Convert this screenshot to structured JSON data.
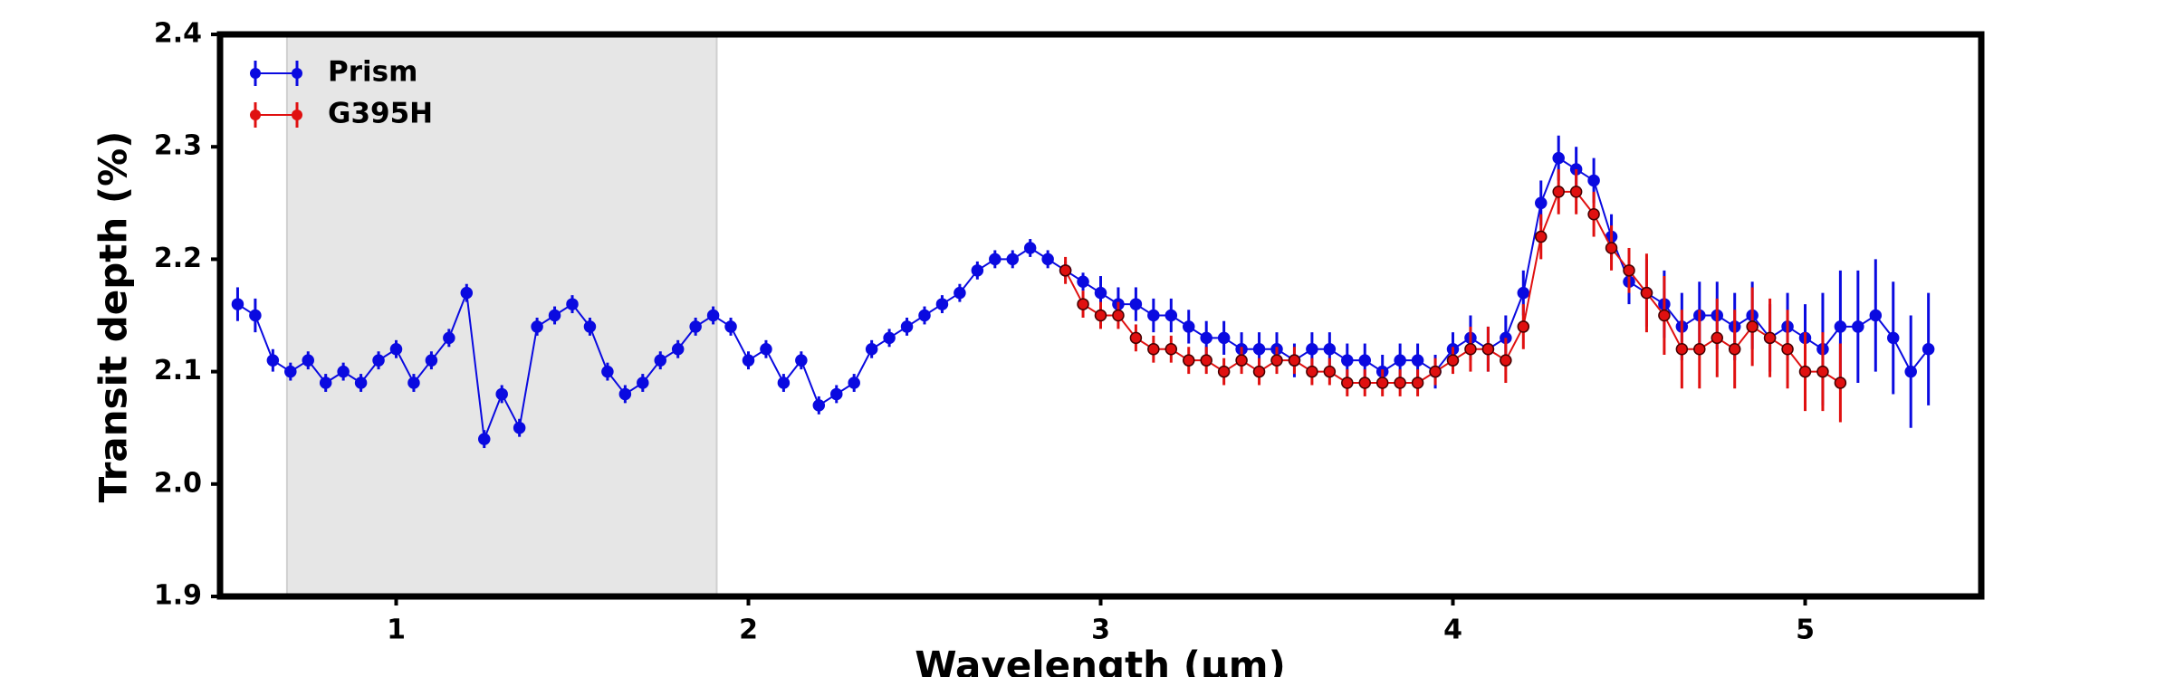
{
  "chart_data": {
    "type": "errorbar",
    "xlabel": "Wavelength (µm)",
    "ylabel": "Transit depth (%)",
    "xlim": [
      0.5,
      5.5
    ],
    "ylim": [
      1.9,
      2.4
    ],
    "xticks": [
      1,
      2,
      3,
      4,
      5
    ],
    "yticks": [
      {
        "value": 1.9,
        "label": "1.9"
      },
      {
        "value": 2.0,
        "label": "2.0"
      },
      {
        "value": 2.1,
        "label": "2.1"
      },
      {
        "value": 2.2,
        "label": "2.2"
      },
      {
        "value": 2.3,
        "label": "2.3"
      },
      {
        "value": 2.4,
        "label": "2.4"
      }
    ],
    "shade": [
      0.69,
      1.91
    ],
    "legend": "upper left",
    "series": [
      {
        "name": "Prism",
        "color": "#0a0ae0",
        "x": [
          0.55,
          0.6,
          0.65,
          0.7,
          0.75,
          0.8,
          0.85,
          0.9,
          0.95,
          1.0,
          1.05,
          1.1,
          1.15,
          1.2,
          1.25,
          1.3,
          1.35,
          1.4,
          1.45,
          1.5,
          1.55,
          1.6,
          1.65,
          1.7,
          1.75,
          1.8,
          1.85,
          1.9,
          1.95,
          2.0,
          2.05,
          2.1,
          2.15,
          2.2,
          2.25,
          2.3,
          2.35,
          2.4,
          2.45,
          2.5,
          2.55,
          2.6,
          2.65,
          2.7,
          2.75,
          2.8,
          2.85,
          2.9,
          2.95,
          3.0,
          3.05,
          3.1,
          3.15,
          3.2,
          3.25,
          3.3,
          3.35,
          3.4,
          3.45,
          3.5,
          3.55,
          3.6,
          3.65,
          3.7,
          3.75,
          3.8,
          3.85,
          3.9,
          3.95,
          4.0,
          4.05,
          4.1,
          4.15,
          4.2,
          4.25,
          4.3,
          4.35,
          4.4,
          4.45,
          4.5,
          4.55,
          4.6,
          4.65,
          4.7,
          4.75,
          4.8,
          4.85,
          4.9,
          4.95,
          5.0,
          5.05,
          5.1,
          5.15,
          5.2,
          5.25,
          5.3,
          5.35
        ],
        "values": [
          2.16,
          2.15,
          2.11,
          2.1,
          2.11,
          2.09,
          2.1,
          2.09,
          2.11,
          2.12,
          2.09,
          2.11,
          2.13,
          2.17,
          2.04,
          2.08,
          2.05,
          2.14,
          2.15,
          2.16,
          2.14,
          2.1,
          2.08,
          2.09,
          2.11,
          2.12,
          2.14,
          2.15,
          2.14,
          2.11,
          2.12,
          2.09,
          2.11,
          2.07,
          2.08,
          2.09,
          2.12,
          2.13,
          2.14,
          2.15,
          2.16,
          2.17,
          2.19,
          2.2,
          2.2,
          2.21,
          2.2,
          2.19,
          2.18,
          2.17,
          2.16,
          2.16,
          2.15,
          2.15,
          2.14,
          2.13,
          2.13,
          2.12,
          2.12,
          2.12,
          2.11,
          2.12,
          2.12,
          2.11,
          2.11,
          2.1,
          2.11,
          2.11,
          2.1,
          2.12,
          2.13,
          2.12,
          2.13,
          2.17,
          2.25,
          2.29,
          2.28,
          2.27,
          2.22,
          2.18,
          2.17,
          2.16,
          2.14,
          2.15,
          2.15,
          2.14,
          2.15,
          2.13,
          2.14,
          2.13,
          2.12,
          2.14,
          2.14,
          2.15,
          2.13,
          2.1,
          2.12
        ],
        "errors": [
          0.015,
          0.015,
          0.01,
          0.008,
          0.008,
          0.008,
          0.008,
          0.008,
          0.008,
          0.008,
          0.008,
          0.008,
          0.008,
          0.008,
          0.008,
          0.008,
          0.008,
          0.008,
          0.008,
          0.008,
          0.008,
          0.008,
          0.008,
          0.008,
          0.008,
          0.008,
          0.008,
          0.008,
          0.008,
          0.008,
          0.008,
          0.008,
          0.008,
          0.008,
          0.008,
          0.008,
          0.008,
          0.008,
          0.008,
          0.008,
          0.008,
          0.008,
          0.008,
          0.008,
          0.008,
          0.008,
          0.008,
          0.008,
          0.008,
          0.015,
          0.015,
          0.015,
          0.015,
          0.015,
          0.015,
          0.015,
          0.015,
          0.015,
          0.015,
          0.015,
          0.015,
          0.015,
          0.015,
          0.015,
          0.015,
          0.015,
          0.015,
          0.015,
          0.015,
          0.015,
          0.02,
          0.02,
          0.02,
          0.02,
          0.02,
          0.02,
          0.02,
          0.02,
          0.02,
          0.02,
          0.03,
          0.03,
          0.03,
          0.03,
          0.03,
          0.03,
          0.03,
          0.03,
          0.03,
          0.03,
          0.05,
          0.05,
          0.05,
          0.05,
          0.05,
          0.05,
          0.05
        ]
      },
      {
        "name": "G395H",
        "color": "#e01010",
        "x": [
          2.9,
          2.95,
          3.0,
          3.05,
          3.1,
          3.15,
          3.2,
          3.25,
          3.3,
          3.35,
          3.4,
          3.45,
          3.5,
          3.55,
          3.6,
          3.65,
          3.7,
          3.75,
          3.8,
          3.85,
          3.9,
          3.95,
          4.0,
          4.05,
          4.1,
          4.15,
          4.2,
          4.25,
          4.3,
          4.35,
          4.4,
          4.45,
          4.5,
          4.55,
          4.6,
          4.65,
          4.7,
          4.75,
          4.8,
          4.85,
          4.9,
          4.95,
          5.0,
          5.05,
          5.1
        ],
        "values": [
          2.19,
          2.16,
          2.15,
          2.15,
          2.13,
          2.12,
          2.12,
          2.11,
          2.11,
          2.1,
          2.11,
          2.1,
          2.11,
          2.11,
          2.1,
          2.1,
          2.09,
          2.09,
          2.09,
          2.09,
          2.09,
          2.1,
          2.11,
          2.12,
          2.12,
          2.11,
          2.14,
          2.22,
          2.26,
          2.26,
          2.24,
          2.21,
          2.19,
          2.17,
          2.15,
          2.12,
          2.12,
          2.13,
          2.12,
          2.14,
          2.13,
          2.12,
          2.1,
          2.1,
          2.09
        ],
        "errors": [
          0.012,
          0.012,
          0.012,
          0.012,
          0.012,
          0.012,
          0.012,
          0.012,
          0.012,
          0.012,
          0.012,
          0.012,
          0.012,
          0.012,
          0.012,
          0.012,
          0.012,
          0.012,
          0.012,
          0.012,
          0.012,
          0.012,
          0.012,
          0.02,
          0.02,
          0.02,
          0.02,
          0.02,
          0.02,
          0.02,
          0.02,
          0.02,
          0.02,
          0.035,
          0.035,
          0.035,
          0.035,
          0.035,
          0.035,
          0.035,
          0.035,
          0.035,
          0.035,
          0.035,
          0.035
        ]
      }
    ]
  }
}
